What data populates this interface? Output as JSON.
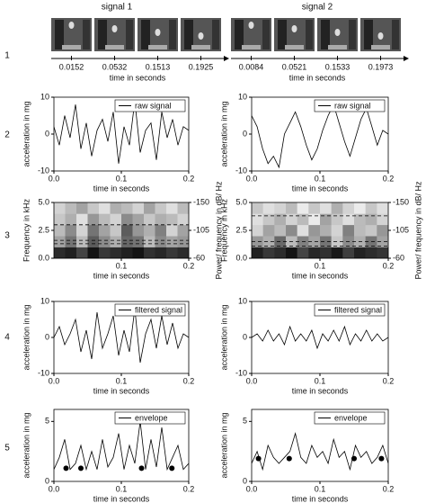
{
  "column_titles": [
    "signal 1",
    "signal 2"
  ],
  "row_labels": [
    "1",
    "2",
    "3",
    "4",
    "5"
  ],
  "frames": [
    [
      0.0152,
      0.0532,
      0.1513,
      0.1925
    ],
    [
      0.0084,
      0.0521,
      0.1533,
      0.1973
    ]
  ],
  "frames_axis_label": "time in seconds",
  "chart_data": [
    {
      "type": "line",
      "xlabel": "time in seconds",
      "ylabel": "acceleration in mg",
      "x": [
        0,
        0.008,
        0.016,
        0.024,
        0.032,
        0.04,
        0.048,
        0.056,
        0.064,
        0.072,
        0.08,
        0.088,
        0.096,
        0.104,
        0.112,
        0.12,
        0.128,
        0.136,
        0.144,
        0.152,
        0.16,
        0.168,
        0.176,
        0.184,
        0.192,
        0.2
      ],
      "series": [
        {
          "name": "raw signal",
          "color": "#000000",
          "values": [
            2,
            -3,
            5,
            -1,
            8,
            -4,
            3,
            -6,
            1,
            4,
            -2,
            6,
            -8,
            2,
            -3,
            9,
            -5,
            1,
            3,
            -7,
            6,
            -1,
            4,
            -3,
            2,
            1
          ]
        }
      ],
      "xlim": [
        0,
        0.2
      ],
      "ylim": [
        -10,
        10
      ],
      "xticks": [
        {
          "value": 0,
          "label": "0.0"
        },
        0.1,
        0.2
      ],
      "yticks": [
        -10,
        0,
        10
      ],
      "legend": "upper right"
    },
    {
      "type": "line",
      "xlabel": "time in seconds",
      "ylabel": "acceleration in mg",
      "x": [
        0,
        0.008,
        0.016,
        0.024,
        0.032,
        0.04,
        0.048,
        0.056,
        0.064,
        0.072,
        0.08,
        0.088,
        0.096,
        0.104,
        0.112,
        0.12,
        0.128,
        0.136,
        0.144,
        0.152,
        0.16,
        0.168,
        0.176,
        0.184,
        0.192,
        0.2
      ],
      "series": [
        {
          "name": "raw signal",
          "color": "#000000",
          "values": [
            5,
            2,
            -4,
            -8,
            -6,
            -9,
            0,
            3,
            6,
            2,
            -3,
            -7,
            -4,
            1,
            5,
            8,
            3,
            -2,
            -6,
            -1,
            4,
            7,
            2,
            -3,
            1,
            0
          ]
        }
      ],
      "xlim": [
        0,
        0.2
      ],
      "ylim": [
        -10,
        10
      ],
      "xticks": [
        {
          "value": 0,
          "label": "0.0"
        },
        0.1,
        0.2
      ],
      "yticks": [
        -10,
        0,
        10
      ],
      "legend": "upper right"
    },
    {
      "type": "heatmap",
      "xlabel": "time in seconds",
      "ylabel": "Frequency in kHz",
      "y2label": "Power/ frequency in dB/ Hz",
      "xlim": [
        0,
        0.2
      ],
      "ylim": [
        0,
        5
      ],
      "xticks": [
        0.1,
        0.2
      ],
      "yticks": [
        {
          "value": 0,
          "label": "0.0"
        },
        2.5,
        {
          "value": 5,
          "label": "5.0"
        }
      ],
      "y2lim": [
        -60,
        -150
      ],
      "y2ticks": [
        -150,
        -105,
        -60
      ],
      "matrix": [
        [
          -70,
          -65,
          -80,
          -60,
          -75,
          -70,
          -65,
          -60,
          -72,
          -68,
          -75,
          -70
        ],
        [
          -120,
          -100,
          -130,
          -90,
          -110,
          -125,
          -95,
          -100,
          -130,
          -110,
          -120,
          -115
        ],
        [
          -130,
          -110,
          -140,
          -100,
          -120,
          -135,
          -90,
          -115,
          -125,
          -105,
          -140,
          -120
        ],
        [
          -135,
          -125,
          -145,
          -115,
          -130,
          -140,
          -110,
          -120,
          -135,
          -125,
          -130,
          -140
        ],
        [
          -140,
          -130,
          -120,
          -135,
          -145,
          -125,
          -130,
          -140,
          -120,
          -135,
          -145,
          -130
        ]
      ],
      "hlines": [
        1.3,
        1.6,
        3.0
      ]
    },
    {
      "type": "heatmap",
      "xlabel": "time in seconds",
      "ylabel": "Frequency in kHz",
      "y2label": "Power/ frequency in dB/ Hz",
      "xlim": [
        0,
        0.2
      ],
      "ylim": [
        0,
        5
      ],
      "xticks": [
        0.1,
        0.2
      ],
      "yticks": [
        {
          "value": 0,
          "label": "0.0"
        },
        2.5,
        {
          "value": 5,
          "label": "5.0"
        }
      ],
      "y2lim": [
        -60,
        -150
      ],
      "y2ticks": [
        -150,
        -105,
        -60
      ],
      "matrix": [
        [
          -65,
          -75,
          -70,
          -60,
          -80,
          -68,
          -72,
          -62,
          -78,
          -66,
          -70,
          -74
        ],
        [
          -115,
          -125,
          -95,
          -130,
          -105,
          -120,
          -100,
          -135,
          -110,
          -125,
          -100,
          -120
        ],
        [
          -140,
          -120,
          -130,
          -110,
          -145,
          -115,
          -125,
          -140,
          -105,
          -130,
          -135,
          -115
        ],
        [
          -145,
          -135,
          -125,
          -140,
          -130,
          -150,
          -120,
          -135,
          -145,
          -130,
          -125,
          -140
        ],
        [
          -135,
          -145,
          -140,
          -130,
          -150,
          -135,
          -145,
          -125,
          -140,
          -150,
          -135,
          -145
        ]
      ],
      "hlines": [
        1.1,
        1.5,
        3.8
      ]
    },
    {
      "type": "line",
      "xlabel": "time in seconds",
      "ylabel": "acceleration in mg",
      "x": [
        0,
        0.008,
        0.016,
        0.024,
        0.032,
        0.04,
        0.048,
        0.056,
        0.064,
        0.072,
        0.08,
        0.088,
        0.096,
        0.104,
        0.112,
        0.12,
        0.128,
        0.136,
        0.144,
        0.152,
        0.16,
        0.168,
        0.176,
        0.184,
        0.192,
        0.2
      ],
      "series": [
        {
          "name": "filtered signal",
          "color": "#000000",
          "values": [
            0,
            3,
            -2,
            1,
            5,
            -4,
            2,
            -6,
            7,
            -3,
            1,
            6,
            -5,
            2,
            -4,
            8,
            -7,
            1,
            5,
            -3,
            6,
            -2,
            4,
            -3,
            1,
            0
          ]
        }
      ],
      "xlim": [
        0,
        0.2
      ],
      "ylim": [
        -10,
        10
      ],
      "xticks": [
        {
          "value": 0,
          "label": "0.0"
        },
        0.1,
        0.2
      ],
      "yticks": [
        -10,
        0,
        10
      ],
      "legend": "upper right"
    },
    {
      "type": "line",
      "xlabel": "time in seconds",
      "ylabel": "acceleration in mg",
      "x": [
        0,
        0.008,
        0.016,
        0.024,
        0.032,
        0.04,
        0.048,
        0.056,
        0.064,
        0.072,
        0.08,
        0.088,
        0.096,
        0.104,
        0.112,
        0.12,
        0.128,
        0.136,
        0.144,
        0.152,
        0.16,
        0.168,
        0.176,
        0.184,
        0.192,
        0.2
      ],
      "series": [
        {
          "name": "filtered signal",
          "color": "#000000",
          "values": [
            0,
            1,
            -1,
            2,
            -1,
            1,
            -2,
            3,
            -1,
            1,
            -1,
            2,
            -3,
            1,
            -1,
            2,
            -1,
            3,
            -2,
            1,
            -1,
            2,
            -1,
            1,
            -1,
            0
          ]
        }
      ],
      "xlim": [
        0,
        0.2
      ],
      "ylim": [
        -10,
        10
      ],
      "xticks": [
        {
          "value": 0,
          "label": "0.0"
        },
        0.1,
        0.2
      ],
      "yticks": [
        -10,
        0,
        10
      ],
      "legend": "upper right"
    },
    {
      "type": "line",
      "xlabel": "time in seconds",
      "ylabel": "acceleration in mg",
      "x": [
        0,
        0.008,
        0.016,
        0.024,
        0.032,
        0.04,
        0.048,
        0.056,
        0.064,
        0.072,
        0.08,
        0.088,
        0.096,
        0.104,
        0.112,
        0.12,
        0.128,
        0.136,
        0.144,
        0.152,
        0.16,
        0.168,
        0.176,
        0.184,
        0.192,
        0.2
      ],
      "series": [
        {
          "name": "envelope",
          "color": "#000000",
          "values": [
            1,
            2,
            3.5,
            1,
            1.5,
            3,
            1,
            2.5,
            1,
            3.5,
            1.2,
            2,
            4,
            1,
            3,
            1.5,
            5,
            1,
            3.5,
            1.2,
            4.5,
            1,
            2,
            3,
            1,
            1.5
          ]
        }
      ],
      "points": {
        "x": [
          0.018,
          0.04,
          0.13,
          0.175
        ],
        "values": [
          1.1,
          1.1,
          1.1,
          1.1
        ]
      },
      "xlim": [
        0,
        0.2
      ],
      "ylim": [
        0,
        6
      ],
      "xticks": [
        {
          "value": 0,
          "label": "0.0"
        },
        0.1,
        0.2
      ],
      "yticks": [
        0,
        5
      ],
      "legend": "upper right"
    },
    {
      "type": "line",
      "xlabel": "time in seconds",
      "ylabel": "acceleration in mg",
      "x": [
        0,
        0.008,
        0.016,
        0.024,
        0.032,
        0.04,
        0.048,
        0.056,
        0.064,
        0.072,
        0.08,
        0.088,
        0.096,
        0.104,
        0.112,
        0.12,
        0.128,
        0.136,
        0.144,
        0.152,
        0.16,
        0.168,
        0.176,
        0.184,
        0.192,
        0.2
      ],
      "series": [
        {
          "name": "envelope",
          "color": "#000000",
          "values": [
            1.5,
            2.5,
            1,
            3,
            2,
            1.5,
            2,
            2.5,
            4,
            2,
            1.5,
            3,
            2,
            2.5,
            1.5,
            3.5,
            2,
            2.5,
            1,
            3,
            2,
            2.5,
            1.5,
            2,
            3,
            1.5
          ]
        }
      ],
      "points": {
        "x": [
          0.01,
          0.055,
          0.15,
          0.19
        ],
        "values": [
          1.9,
          1.9,
          1.9,
          1.9
        ]
      },
      "xlim": [
        0,
        0.2
      ],
      "ylim": [
        0,
        6
      ],
      "xticks": [
        {
          "value": 0,
          "label": "0.0"
        },
        0.1,
        0.2
      ],
      "yticks": [
        0,
        5
      ],
      "legend": "upper right"
    }
  ]
}
